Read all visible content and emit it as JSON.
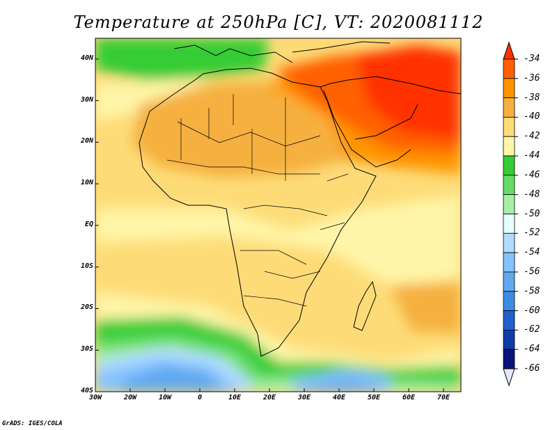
{
  "title": "Temperature at 250hPa [C], VT: 2020081112",
  "axes": {
    "lat_labels": [
      "40N",
      "30N",
      "20N",
      "10N",
      "EQ",
      "10S",
      "20S",
      "30S",
      "40S"
    ],
    "lon_labels": [
      "30W",
      "20W",
      "10W",
      "0",
      "10E",
      "20E",
      "30E",
      "40E",
      "50E",
      "60E",
      "70E"
    ],
    "lat_range": [
      -40,
      45
    ],
    "lon_range": [
      -30,
      75
    ]
  },
  "colorbar": {
    "levels": [
      "-34",
      "-36",
      "-38",
      "-40",
      "-42",
      "-44",
      "-46",
      "-48",
      "-50",
      "-52",
      "-54",
      "-56",
      "-58",
      "-60",
      "-62",
      "-64",
      "-66"
    ],
    "colors": [
      "#ff3000",
      "#ff6000",
      "#ff9400",
      "#f5b040",
      "#fddc78",
      "#fff5a8",
      "#36cc36",
      "#66dd66",
      "#a8eea8",
      "#e6ffff",
      "#b0dcff",
      "#86c2ff",
      "#60a8f0",
      "#3c8ce4",
      "#2260d0",
      "#0e3ca8",
      "#0a1478"
    ],
    "under_color": "#e6e6ff",
    "over_color": "#ff3000"
  },
  "footer": "GrADS: IGES/COLA"
}
